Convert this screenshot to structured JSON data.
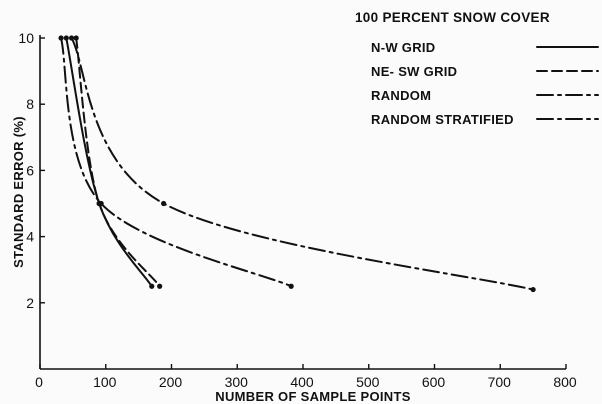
{
  "chart_data": {
    "type": "line",
    "xlabel": "NUMBER OF SAMPLE POINTS",
    "ylabel": "STANDARD ERROR (%)",
    "xlim": [
      0,
      800
    ],
    "ylim": [
      0,
      10
    ],
    "xticks": [
      0,
      100,
      200,
      300,
      400,
      500,
      600,
      700,
      800
    ],
    "yticks": [
      2,
      4,
      6,
      8,
      10
    ],
    "grid": false,
    "legend_title": "100 PERCENT SNOW COVER",
    "legend_position": "top-right",
    "series": [
      {
        "name": "N-W GRID",
        "style": "solid",
        "x": [
          40,
          90,
          170
        ],
        "y": [
          10,
          5,
          2.5
        ]
      },
      {
        "name": "NE- SW GRID",
        "style": "dashed",
        "x": [
          55,
          90,
          182
        ],
        "y": [
          10,
          5,
          2.5
        ]
      },
      {
        "name": "RANDOM",
        "style": "dash-dot",
        "x": [
          32,
          93,
          382
        ],
        "y": [
          10,
          5,
          2.5
        ]
      },
      {
        "name": "RANDOM STRATIFIED",
        "style": "dash-dot",
        "x": [
          48,
          188,
          750
        ],
        "y": [
          10,
          5,
          2.4
        ]
      }
    ]
  }
}
